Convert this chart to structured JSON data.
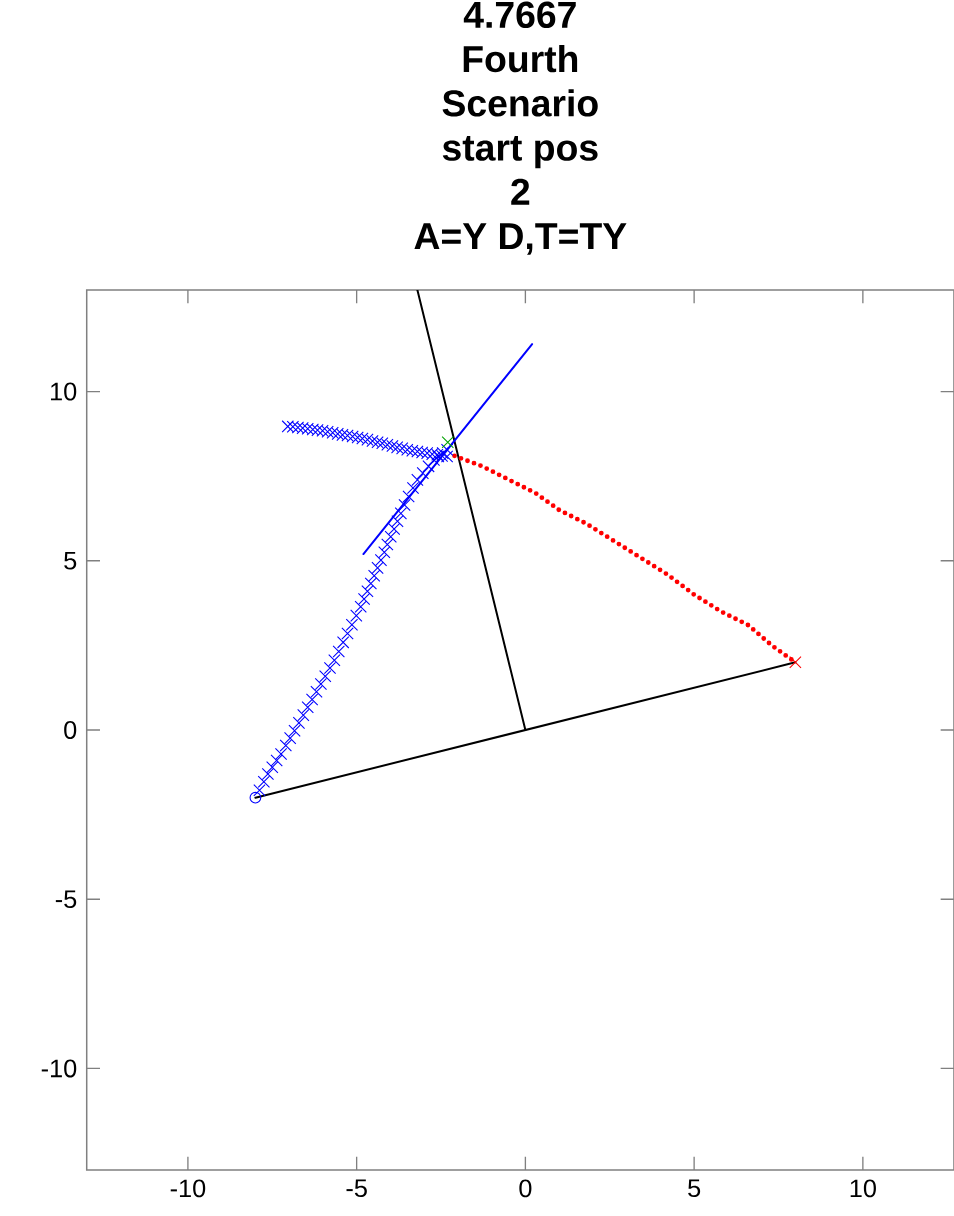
{
  "chart_data": {
    "type": "line",
    "title": [
      "4.7667",
      "Fourth",
      "Scenario",
      "start pos",
      "2",
      "A=Y  D,T=TY"
    ],
    "xlim": [
      -13,
      12.7
    ],
    "ylim": [
      -13,
      13
    ],
    "xticks": [
      -10,
      -5,
      0,
      5,
      10
    ],
    "yticks": [
      -10,
      -5,
      0,
      5,
      10
    ],
    "series": [
      {
        "color": "#000000",
        "marker": "none",
        "line_style": "solid",
        "x": [
          -8,
          0,
          8
        ],
        "values": [
          -2,
          0,
          2
        ]
      },
      {
        "color": "#000000",
        "marker": "none",
        "line_style": "solid",
        "x": [
          0,
          -3.2
        ],
        "values": [
          0,
          13
        ]
      },
      {
        "color": "#0000ff",
        "marker": "none",
        "line_style": "solid",
        "x": [
          -4.8,
          0.2
        ],
        "values": [
          5.2,
          11.4
        ]
      },
      {
        "type": "scatter",
        "color": "#0000ff",
        "marker": "cross",
        "x": [
          -7.88,
          -7.75,
          -7.63,
          -7.5,
          -7.37,
          -7.24,
          -7.1,
          -6.97,
          -6.84,
          -6.71,
          -6.58,
          -6.45,
          -6.32,
          -6.19,
          -6.06,
          -5.93,
          -5.79,
          -5.66,
          -5.53,
          -5.4,
          -5.27,
          -5.14,
          -5.01,
          -4.88,
          -4.78,
          -4.68,
          -4.58,
          -4.48,
          -4.38,
          -4.28,
          -4.18,
          -4.09,
          -3.99,
          -3.89,
          -3.79,
          -3.69,
          -3.58,
          -3.46,
          -3.33,
          -3.2,
          -3.04,
          -2.87,
          -2.71,
          -2.58,
          -2.45,
          -2.32
        ],
        "values": [
          -1.78,
          -1.53,
          -1.3,
          -1.1,
          -0.9,
          -0.71,
          -0.46,
          -0.24,
          -0.02,
          0.21,
          0.44,
          0.67,
          0.9,
          1.13,
          1.36,
          1.59,
          1.83,
          2.06,
          2.32,
          2.59,
          2.85,
          3.11,
          3.38,
          3.64,
          3.87,
          4.1,
          4.33,
          4.56,
          4.79,
          5.02,
          5.25,
          5.48,
          5.71,
          5.94,
          6.17,
          6.4,
          6.65,
          6.9,
          7.15,
          7.39,
          7.59,
          7.79,
          7.98,
          8.08,
          8.18,
          8.28
        ]
      },
      {
        "type": "scatter",
        "color": "#0000ff",
        "marker": "cross",
        "x": [
          -7.04,
          -6.89,
          -6.74,
          -6.6,
          -6.45,
          -6.3,
          -6.16,
          -6.01,
          -5.86,
          -5.71,
          -5.56,
          -5.42,
          -5.27,
          -5.12,
          -4.97,
          -4.83,
          -4.68,
          -4.53,
          -4.38,
          -4.24,
          -4.09,
          -3.94,
          -3.8,
          -3.65,
          -3.5,
          -3.35,
          -3.2,
          -3.06,
          -2.91,
          -2.76,
          -2.61,
          -2.47,
          -2.32
        ],
        "values": [
          8.97,
          8.96,
          8.94,
          8.92,
          8.9,
          8.88,
          8.86,
          8.84,
          8.81,
          8.78,
          8.75,
          8.72,
          8.7,
          8.67,
          8.64,
          8.61,
          8.58,
          8.54,
          8.5,
          8.47,
          8.43,
          8.39,
          8.35,
          8.32,
          8.28,
          8.25,
          8.23,
          8.2,
          8.18,
          8.15,
          8.13,
          8.1,
          8.08
        ]
      },
      {
        "color": "#ff0000",
        "marker": "none",
        "line_style": "dotted",
        "x": [
          -2.1,
          -1.3,
          -0.5,
          0.3,
          1.0,
          1.8,
          2.6,
          3.4,
          4.2,
          5.0,
          5.8,
          6.6,
          7.3,
          8.0
        ],
        "values": [
          8.1,
          7.8,
          7.4,
          7.0,
          6.5,
          6.1,
          5.6,
          5.1,
          4.6,
          4.0,
          3.5,
          3.1,
          2.5,
          2.0
        ]
      },
      {
        "type": "scatter",
        "color": "#ff0000",
        "marker": "cross",
        "x": [
          8.0
        ],
        "values": [
          2.0
        ]
      },
      {
        "type": "scatter",
        "color": "#00a000",
        "marker": "cross",
        "x": [
          -2.3
        ],
        "values": [
          8.5
        ]
      },
      {
        "type": "scatter",
        "color": "#0000ff",
        "marker": "circle",
        "x": [
          -8.0
        ],
        "values": [
          -2.0
        ]
      }
    ]
  }
}
